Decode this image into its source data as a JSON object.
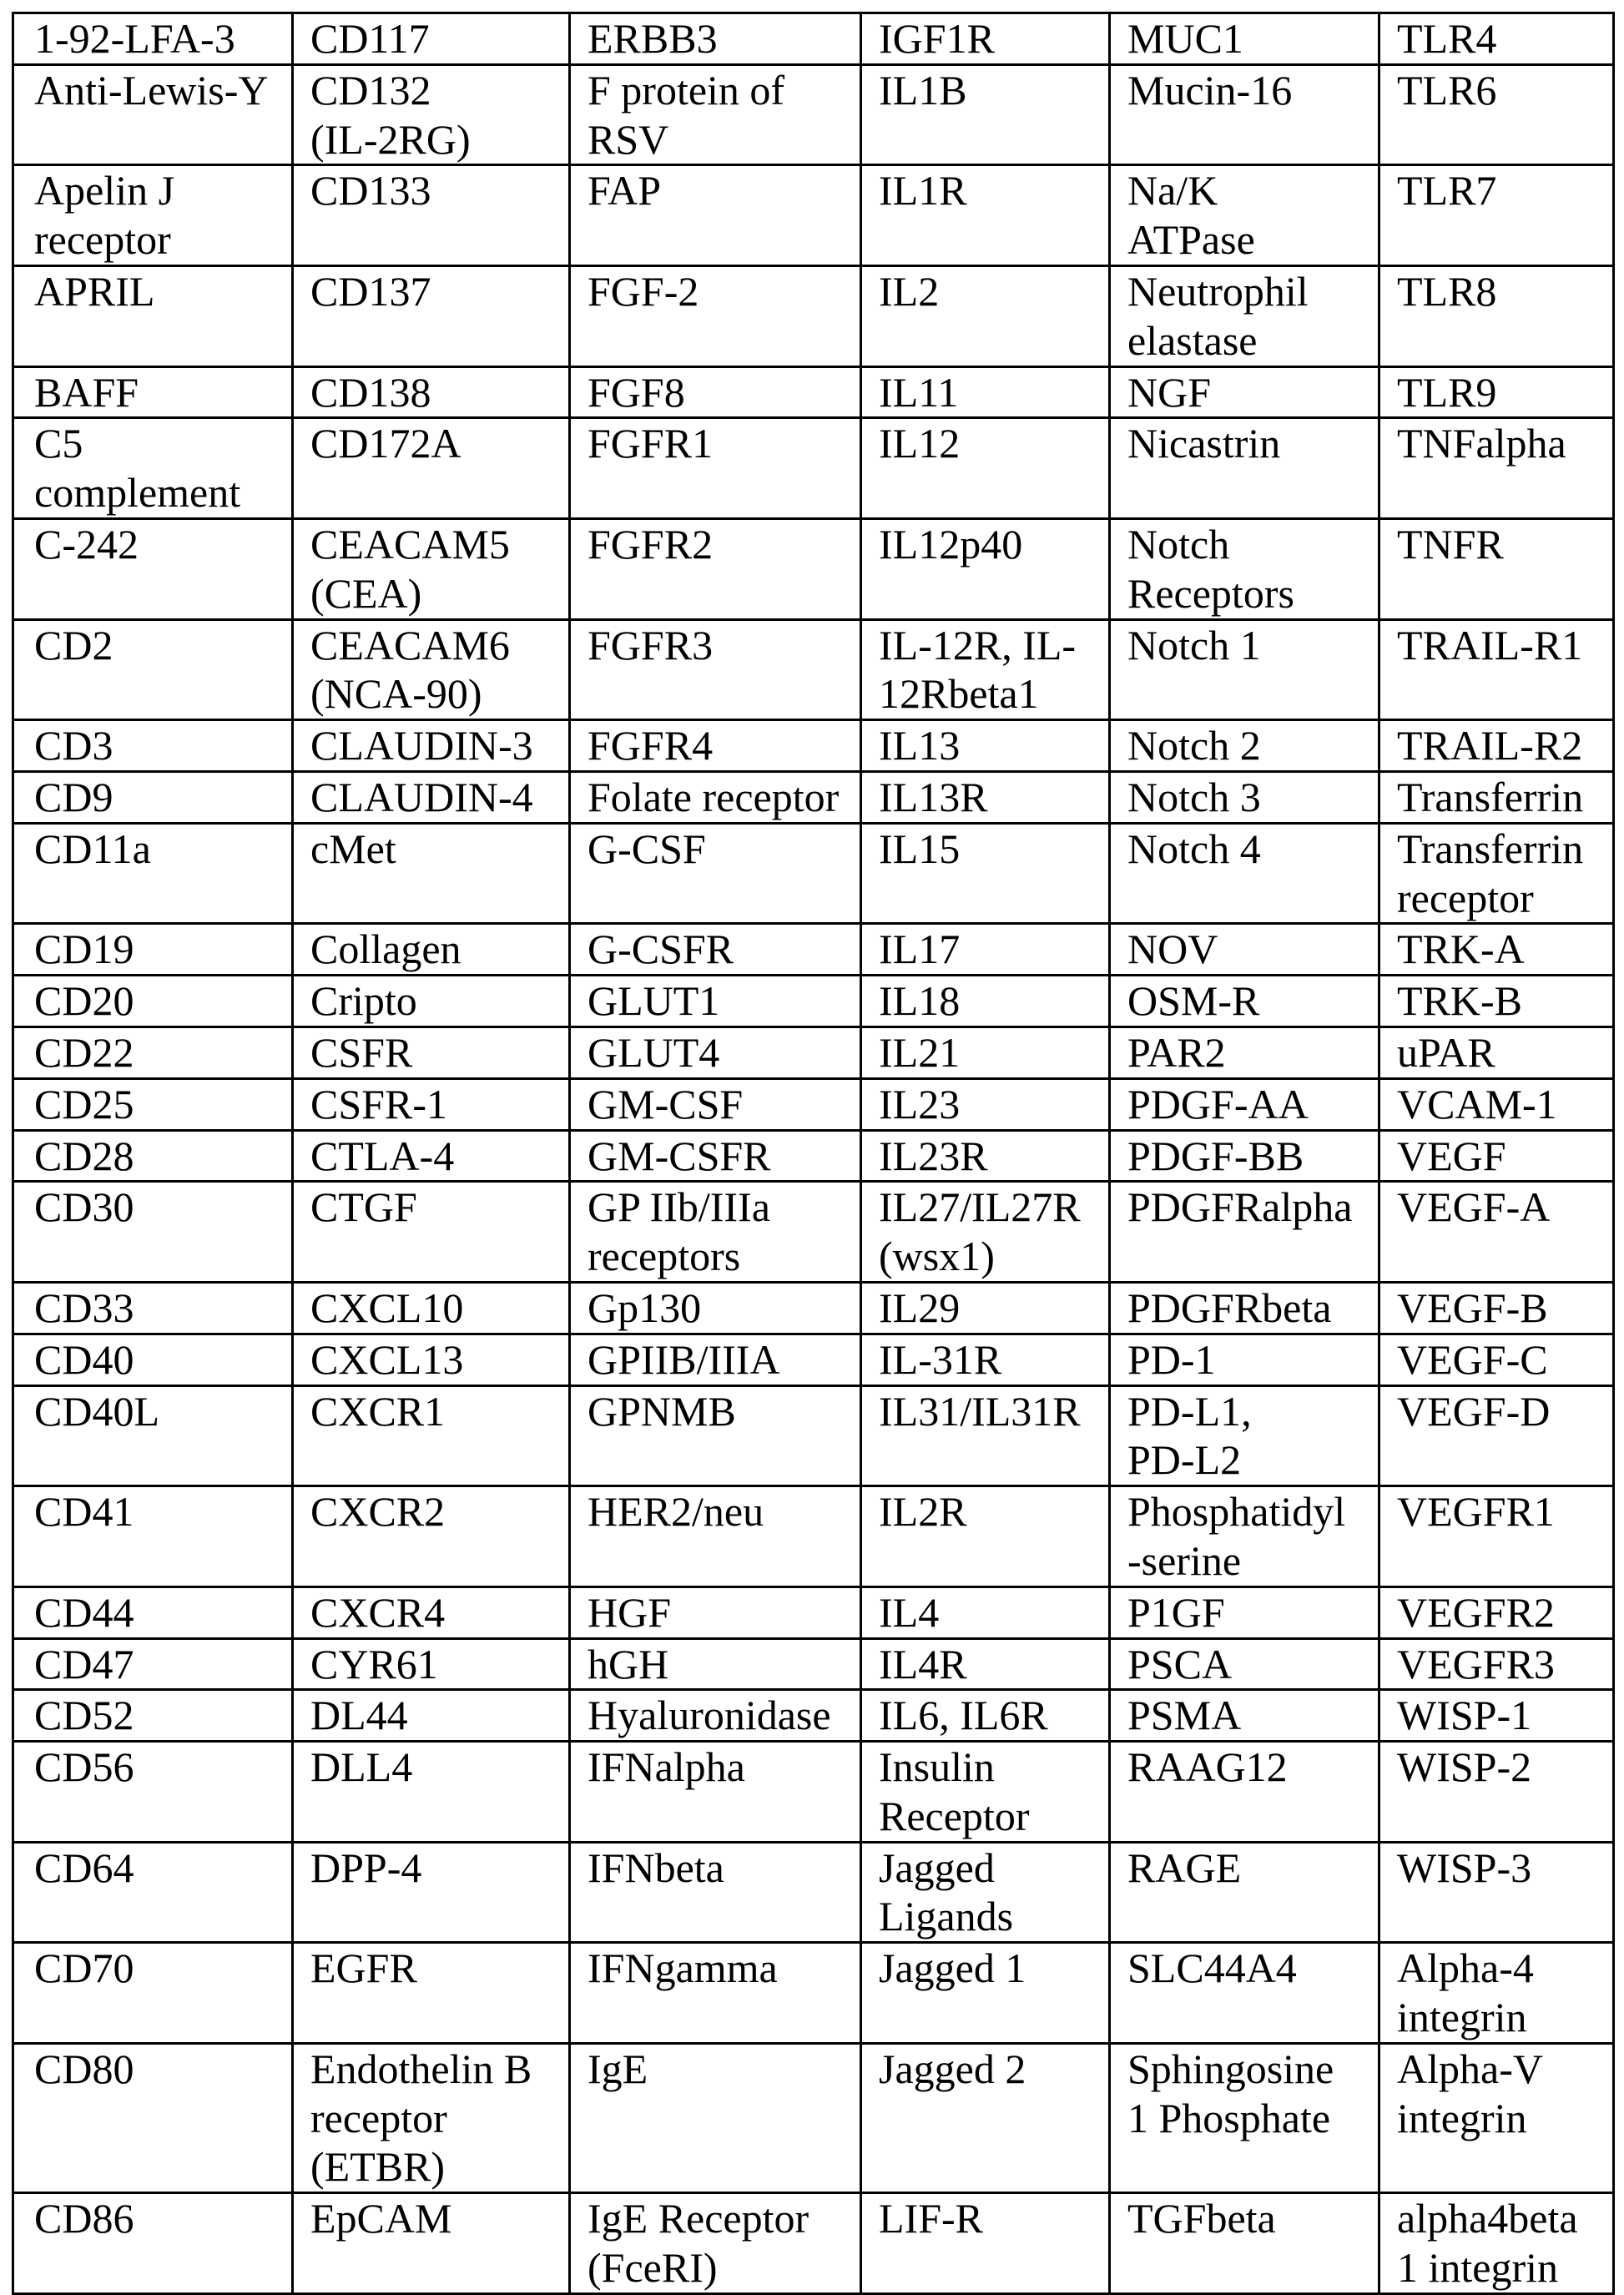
{
  "table": {
    "rows": [
      [
        "1-92-LFA-3",
        "CD117",
        "ERBB3",
        "IGF1R",
        "MUC1",
        "TLR4"
      ],
      [
        "Anti-Lewis-Y",
        "CD132\n(IL-2RG)",
        "F protein of\nRSV",
        "IL1B",
        "Mucin-16",
        "TLR6"
      ],
      [
        "Apelin J\nreceptor",
        "CD133",
        "FAP",
        "IL1R",
        "Na/K\nATPase",
        "TLR7"
      ],
      [
        "APRIL",
        "CD137",
        "FGF-2",
        "IL2",
        "Neutrophil\nelastase",
        "TLR8"
      ],
      [
        "BAFF",
        "CD138",
        "FGF8",
        "IL11",
        "NGF",
        "TLR9"
      ],
      [
        "C5\ncomplement",
        "CD172A",
        "FGFR1",
        "IL12",
        "Nicastrin",
        "TNFalpha"
      ],
      [
        "C-242",
        "CEACAM5\n(CEA)",
        "FGFR2",
        "IL12p40",
        "Notch\nReceptors",
        "TNFR"
      ],
      [
        "CD2",
        "CEACAM6\n(NCA-90)",
        "FGFR3",
        "IL-12R, IL-\n12Rbeta1",
        "Notch 1",
        "TRAIL-R1"
      ],
      [
        "CD3",
        "CLAUDIN-3",
        "FGFR4",
        "IL13",
        "Notch 2",
        "TRAIL-R2"
      ],
      [
        "CD9",
        "CLAUDIN-4",
        "Folate receptor",
        "IL13R",
        "Notch 3",
        "Transferrin"
      ],
      [
        "CD11a",
        "cMet",
        "G-CSF",
        "IL15",
        "Notch 4",
        "Transferrin\nreceptor"
      ],
      [
        "CD19",
        "Collagen",
        "G-CSFR",
        "IL17",
        "NOV",
        "TRK-A"
      ],
      [
        "CD20",
        "Cripto",
        "GLUT1",
        "IL18",
        "OSM-R",
        "TRK-B"
      ],
      [
        "CD22",
        "CSFR",
        "GLUT4",
        "IL21",
        "PAR2",
        "uPAR"
      ],
      [
        "CD25",
        "CSFR-1",
        "GM-CSF",
        "IL23",
        "PDGF-AA",
        "VCAM-1"
      ],
      [
        "CD28",
        "CTLA-4",
        "GM-CSFR",
        "IL23R",
        "PDGF-BB",
        "VEGF"
      ],
      [
        "CD30",
        "CTGF",
        "GP IIb/IIIa\nreceptors",
        "IL27/IL27R\n(wsx1)",
        "PDGFRalpha",
        "VEGF-A"
      ],
      [
        "CD33",
        "CXCL10",
        "Gp130",
        "IL29",
        "PDGFRbeta",
        "VEGF-B"
      ],
      [
        "CD40",
        "CXCL13",
        "GPIIB/IIIA",
        "IL-31R",
        "PD-1",
        "VEGF-C"
      ],
      [
        "CD40L",
        "CXCR1",
        "GPNMB",
        "IL31/IL31R",
        "PD-L1,\nPD-L2",
        "VEGF-D"
      ],
      [
        "CD41",
        "CXCR2",
        "HER2/neu",
        "IL2R",
        "Phosphatidyl\n-serine",
        "VEGFR1"
      ],
      [
        "CD44",
        "CXCR4",
        "HGF",
        "IL4",
        "P1GF",
        "VEGFR2"
      ],
      [
        "CD47",
        "CYR61",
        "hGH",
        "IL4R",
        "PSCA",
        "VEGFR3"
      ],
      [
        "CD52",
        "DL44",
        "Hyaluronidase",
        "IL6, IL6R",
        "PSMA",
        "WISP-1"
      ],
      [
        "CD56",
        "DLL4",
        "IFNalpha",
        "Insulin\nReceptor",
        "RAAG12",
        "WISP-2"
      ],
      [
        "CD64",
        "DPP-4",
        "IFNbeta",
        "Jagged\nLigands",
        "RAGE",
        "WISP-3"
      ],
      [
        "CD70",
        "EGFR",
        "IFNgamma",
        "Jagged 1",
        "SLC44A4",
        "Alpha-4\nintegrin"
      ],
      [
        "CD80",
        "Endothelin B\nreceptor\n(ETBR)",
        "IgE",
        "Jagged 2",
        "Sphingosine\n1 Phosphate",
        "Alpha-V\nintegrin"
      ],
      [
        "CD86",
        "EpCAM",
        "IgE Receptor\n(FceRI)",
        "LIF-R",
        "TGFbeta",
        "alpha4beta\n1 integrin"
      ]
    ]
  }
}
